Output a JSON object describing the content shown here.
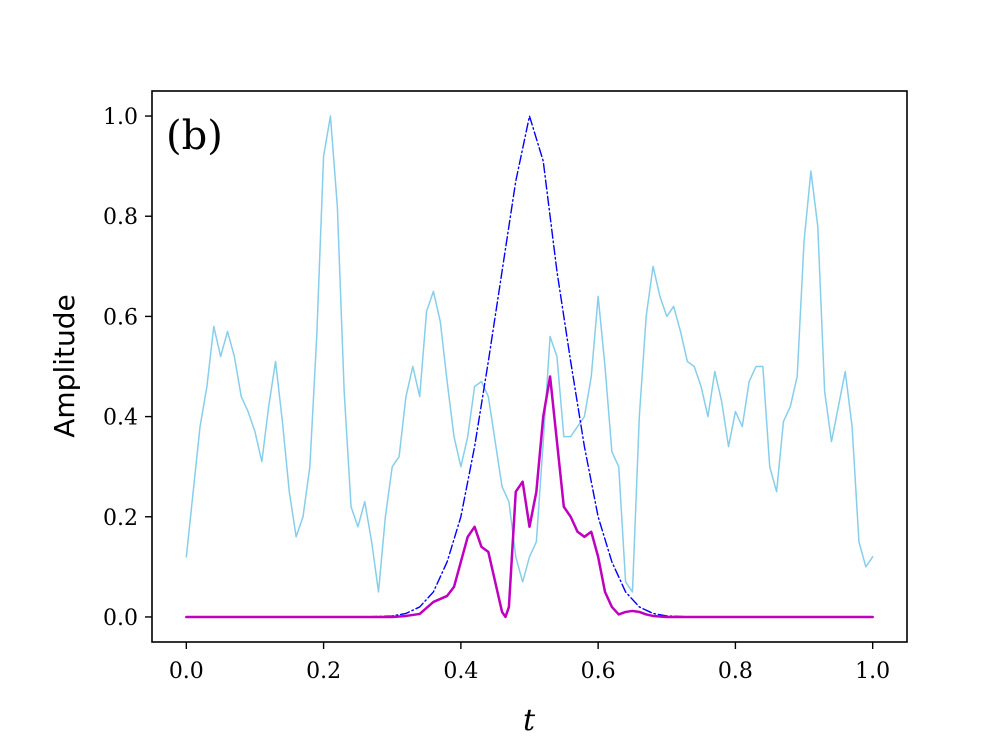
{
  "chart_data": {
    "type": "line",
    "annotation": "(b)",
    "xlabel": "t",
    "ylabel": "Amplitude",
    "xlim": [
      -0.05,
      1.05
    ],
    "ylim": [
      -0.05,
      1.05
    ],
    "xticks": [
      0.0,
      0.2,
      0.4,
      0.6,
      0.8,
      1.0
    ],
    "xtick_labels": [
      "0.0",
      "0.2",
      "0.4",
      "0.6",
      "0.8",
      "1.0"
    ],
    "yticks": [
      0.0,
      0.2,
      0.4,
      0.6,
      0.8,
      1.0
    ],
    "ytick_labels": [
      "0.0",
      "0.2",
      "0.4",
      "0.6",
      "0.8",
      "1.0"
    ],
    "grid": false,
    "legend": "none",
    "series": [
      {
        "color": "#87CEEB",
        "style": "solid",
        "x": [
          0.0,
          0.01,
          0.02,
          0.03,
          0.04,
          0.05,
          0.06,
          0.07,
          0.08,
          0.09,
          0.1,
          0.11,
          0.12,
          0.13,
          0.14,
          0.15,
          0.16,
          0.17,
          0.18,
          0.19,
          0.2,
          0.21,
          0.22,
          0.23,
          0.24,
          0.25,
          0.26,
          0.27,
          0.28,
          0.29,
          0.3,
          0.31,
          0.32,
          0.33,
          0.34,
          0.35,
          0.36,
          0.37,
          0.38,
          0.39,
          0.4,
          0.41,
          0.42,
          0.43,
          0.44,
          0.45,
          0.46,
          0.47,
          0.48,
          0.49,
          0.5,
          0.51,
          0.52,
          0.53,
          0.54,
          0.55,
          0.56,
          0.57,
          0.58,
          0.59,
          0.6,
          0.61,
          0.62,
          0.63,
          0.64,
          0.65,
          0.66,
          0.67,
          0.68,
          0.69,
          0.7,
          0.71,
          0.72,
          0.73,
          0.74,
          0.75,
          0.76,
          0.77,
          0.78,
          0.79,
          0.8,
          0.81,
          0.82,
          0.83,
          0.84,
          0.85,
          0.86,
          0.87,
          0.88,
          0.89,
          0.9,
          0.91,
          0.92,
          0.93,
          0.94,
          0.95,
          0.96,
          0.97,
          0.98,
          0.99,
          1.0
        ],
        "y": [
          0.12,
          0.25,
          0.38,
          0.46,
          0.58,
          0.52,
          0.57,
          0.52,
          0.44,
          0.41,
          0.37,
          0.31,
          0.42,
          0.51,
          0.39,
          0.25,
          0.16,
          0.2,
          0.3,
          0.56,
          0.92,
          1.0,
          0.82,
          0.45,
          0.22,
          0.18,
          0.23,
          0.15,
          0.05,
          0.2,
          0.3,
          0.32,
          0.44,
          0.5,
          0.44,
          0.61,
          0.65,
          0.59,
          0.47,
          0.36,
          0.3,
          0.36,
          0.46,
          0.47,
          0.44,
          0.35,
          0.26,
          0.23,
          0.12,
          0.07,
          0.12,
          0.15,
          0.35,
          0.56,
          0.52,
          0.36,
          0.36,
          0.38,
          0.4,
          0.48,
          0.64,
          0.5,
          0.33,
          0.3,
          0.07,
          0.05,
          0.4,
          0.6,
          0.7,
          0.64,
          0.6,
          0.62,
          0.57,
          0.51,
          0.5,
          0.46,
          0.4,
          0.49,
          0.43,
          0.34,
          0.41,
          0.38,
          0.47,
          0.5,
          0.5,
          0.3,
          0.25,
          0.39,
          0.42,
          0.48,
          0.75,
          0.89,
          0.78,
          0.45,
          0.35,
          0.42,
          0.49,
          0.38,
          0.15,
          0.1,
          0.12
        ]
      },
      {
        "color": "#0000FF",
        "style": "dashdot",
        "x": [
          0.0,
          0.02,
          0.04,
          0.06,
          0.08,
          0.1,
          0.12,
          0.14,
          0.16,
          0.18,
          0.2,
          0.22,
          0.24,
          0.26,
          0.28,
          0.3,
          0.32,
          0.34,
          0.36,
          0.38,
          0.4,
          0.42,
          0.44,
          0.46,
          0.48,
          0.5,
          0.52,
          0.54,
          0.56,
          0.58,
          0.6,
          0.62,
          0.64,
          0.66,
          0.68,
          0.7,
          0.72,
          0.74,
          0.76,
          0.78,
          0.8,
          0.82,
          0.84,
          0.86,
          0.88,
          0.9,
          0.92,
          0.94,
          0.96,
          0.98,
          1.0
        ],
        "y": [
          0.0,
          0.0,
          0.0,
          0.0,
          0.0,
          0.0,
          0.0,
          0.0,
          0.0,
          0.0,
          0.0,
          0.0,
          0.0,
          0.0,
          0.001,
          0.002,
          0.007,
          0.02,
          0.05,
          0.11,
          0.2,
          0.34,
          0.51,
          0.69,
          0.87,
          1.0,
          0.91,
          0.69,
          0.51,
          0.34,
          0.2,
          0.11,
          0.05,
          0.02,
          0.007,
          0.002,
          0.001,
          0.0,
          0.0,
          0.0,
          0.0,
          0.0,
          0.0,
          0.0,
          0.0,
          0.0,
          0.0,
          0.0,
          0.0,
          0.0,
          0.0
        ]
      },
      {
        "color": "#BF00BF",
        "style": "solid",
        "x": [
          0.0,
          0.05,
          0.1,
          0.15,
          0.2,
          0.25,
          0.28,
          0.3,
          0.32,
          0.34,
          0.36,
          0.38,
          0.39,
          0.4,
          0.41,
          0.42,
          0.43,
          0.44,
          0.45,
          0.46,
          0.465,
          0.47,
          0.48,
          0.49,
          0.5,
          0.51,
          0.52,
          0.53,
          0.54,
          0.55,
          0.56,
          0.57,
          0.58,
          0.59,
          0.6,
          0.61,
          0.62,
          0.63,
          0.64,
          0.65,
          0.66,
          0.67,
          0.68,
          0.7,
          0.75,
          0.8,
          0.85,
          0.9,
          0.95,
          1.0
        ],
        "y": [
          0.0,
          0.0,
          0.0,
          0.0,
          0.0,
          0.0,
          0.0,
          0.0,
          0.002,
          0.006,
          0.03,
          0.042,
          0.06,
          0.11,
          0.16,
          0.18,
          0.14,
          0.13,
          0.07,
          0.01,
          0.0,
          0.02,
          0.25,
          0.27,
          0.18,
          0.25,
          0.4,
          0.48,
          0.35,
          0.22,
          0.2,
          0.17,
          0.16,
          0.17,
          0.12,
          0.05,
          0.02,
          0.005,
          0.01,
          0.012,
          0.01,
          0.005,
          0.002,
          0.0,
          0.0,
          0.0,
          0.0,
          0.0,
          0.0,
          0.0
        ]
      }
    ]
  }
}
